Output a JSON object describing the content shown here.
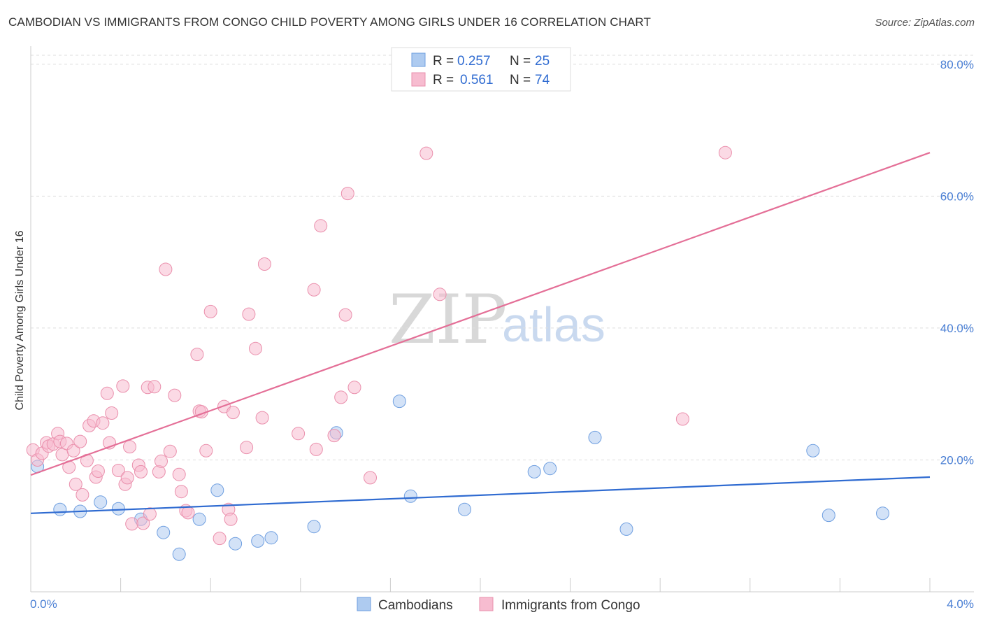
{
  "title": "CAMBODIAN VS IMMIGRANTS FROM CONGO CHILD POVERTY AMONG GIRLS UNDER 16 CORRELATION CHART",
  "source": "Source: ZipAtlas.com",
  "watermark": {
    "left": "ZIP",
    "right": "atlas"
  },
  "legend": {
    "r_label": "R =",
    "n_label": "N =",
    "rows": [
      {
        "r": "0.257",
        "n": "25",
        "color": "#aecbf0"
      },
      {
        "r": "0.561",
        "n": "74",
        "color": "#f7bcd0"
      }
    ]
  },
  "bottom_legend": [
    "Cambodians",
    "Immigrants from Congo"
  ],
  "chart_data": {
    "type": "scatter",
    "title": "CAMBODIAN VS IMMIGRANTS FROM CONGO CHILD POVERTY AMONG GIRLS UNDER 16 CORRELATION CHART",
    "xlabel": "",
    "ylabel": "Child Poverty Among Girls Under 16",
    "xlim": [
      0,
      4.0
    ],
    "ylim": [
      0,
      82
    ],
    "x_tick_labels": [
      "0.0%",
      "4.0%"
    ],
    "y_ticks": [
      20,
      40,
      60,
      80
    ],
    "y_tick_labels": [
      "20.0%",
      "40.0%",
      "60.0%",
      "80.0%"
    ],
    "grid": true,
    "legend_position": "top-center",
    "series": [
      {
        "name": "Cambodians",
        "color": "#aecbf0",
        "stroke": "#6f9fe0",
        "trend_color": "#2f6bd1",
        "trend": {
          "x0": 0,
          "y0": 11.9,
          "x1": 4.0,
          "y1": 17.4
        },
        "points": [
          [
            0.03,
            19.0
          ],
          [
            0.13,
            12.5
          ],
          [
            0.22,
            12.2
          ],
          [
            0.31,
            13.6
          ],
          [
            0.39,
            12.6
          ],
          [
            0.49,
            11.0
          ],
          [
            0.59,
            9.0
          ],
          [
            0.66,
            5.7
          ],
          [
            0.75,
            11.0
          ],
          [
            0.83,
            15.4
          ],
          [
            0.91,
            7.3
          ],
          [
            1.01,
            7.7
          ],
          [
            1.07,
            8.2
          ],
          [
            1.26,
            9.9
          ],
          [
            1.36,
            24.1
          ],
          [
            1.64,
            28.9
          ],
          [
            1.69,
            14.5
          ],
          [
            1.93,
            12.5
          ],
          [
            2.24,
            18.2
          ],
          [
            2.31,
            18.7
          ],
          [
            2.51,
            23.4
          ],
          [
            2.65,
            9.5
          ],
          [
            3.48,
            21.4
          ],
          [
            3.55,
            11.6
          ],
          [
            3.79,
            11.9
          ]
        ]
      },
      {
        "name": "Immigrants from Congo",
        "color": "#f7bcd0",
        "stroke": "#ea8fac",
        "trend_color": "#e46f97",
        "trend": {
          "x0": 0,
          "y0": 17.7,
          "x1": 4.0,
          "y1": 66.6
        },
        "points": [
          [
            0.01,
            21.5
          ],
          [
            0.03,
            20.0
          ],
          [
            0.05,
            21.0
          ],
          [
            0.07,
            22.6
          ],
          [
            0.08,
            22.1
          ],
          [
            0.1,
            22.4
          ],
          [
            0.12,
            24.0
          ],
          [
            0.13,
            22.8
          ],
          [
            0.14,
            20.8
          ],
          [
            0.16,
            22.5
          ],
          [
            0.17,
            18.9
          ],
          [
            0.19,
            21.4
          ],
          [
            0.2,
            16.3
          ],
          [
            0.22,
            22.8
          ],
          [
            0.23,
            14.7
          ],
          [
            0.25,
            19.9
          ],
          [
            0.26,
            25.2
          ],
          [
            0.28,
            25.9
          ],
          [
            0.29,
            17.4
          ],
          [
            0.3,
            18.3
          ],
          [
            0.32,
            25.6
          ],
          [
            0.34,
            30.1
          ],
          [
            0.35,
            22.6
          ],
          [
            0.36,
            27.1
          ],
          [
            0.39,
            18.4
          ],
          [
            0.41,
            31.2
          ],
          [
            0.42,
            16.3
          ],
          [
            0.43,
            17.3
          ],
          [
            0.44,
            22.0
          ],
          [
            0.45,
            10.3
          ],
          [
            0.48,
            19.2
          ],
          [
            0.49,
            18.2
          ],
          [
            0.5,
            10.4
          ],
          [
            0.52,
            31.0
          ],
          [
            0.53,
            11.8
          ],
          [
            0.55,
            31.1
          ],
          [
            0.57,
            18.2
          ],
          [
            0.58,
            19.8
          ],
          [
            0.6,
            48.9
          ],
          [
            0.62,
            21.3
          ],
          [
            0.64,
            29.8
          ],
          [
            0.66,
            17.8
          ],
          [
            0.67,
            15.2
          ],
          [
            0.69,
            12.3
          ],
          [
            0.7,
            12.0
          ],
          [
            0.74,
            36.0
          ],
          [
            0.75,
            27.4
          ],
          [
            0.76,
            27.3
          ],
          [
            0.78,
            21.4
          ],
          [
            0.8,
            42.5
          ],
          [
            0.84,
            8.1
          ],
          [
            0.86,
            28.1
          ],
          [
            0.88,
            12.5
          ],
          [
            0.89,
            11.0
          ],
          [
            0.9,
            27.2
          ],
          [
            0.96,
            21.9
          ],
          [
            0.97,
            42.1
          ],
          [
            1.0,
            36.9
          ],
          [
            1.03,
            26.4
          ],
          [
            1.04,
            49.7
          ],
          [
            1.19,
            24.0
          ],
          [
            1.26,
            45.8
          ],
          [
            1.27,
            21.6
          ],
          [
            1.29,
            55.5
          ],
          [
            1.35,
            23.7
          ],
          [
            1.38,
            29.5
          ],
          [
            1.4,
            42.0
          ],
          [
            1.41,
            60.4
          ],
          [
            1.44,
            31.0
          ],
          [
            1.51,
            17.3
          ],
          [
            1.76,
            66.5
          ],
          [
            1.82,
            45.1
          ],
          [
            2.9,
            26.2
          ],
          [
            3.09,
            66.6
          ]
        ]
      }
    ]
  }
}
